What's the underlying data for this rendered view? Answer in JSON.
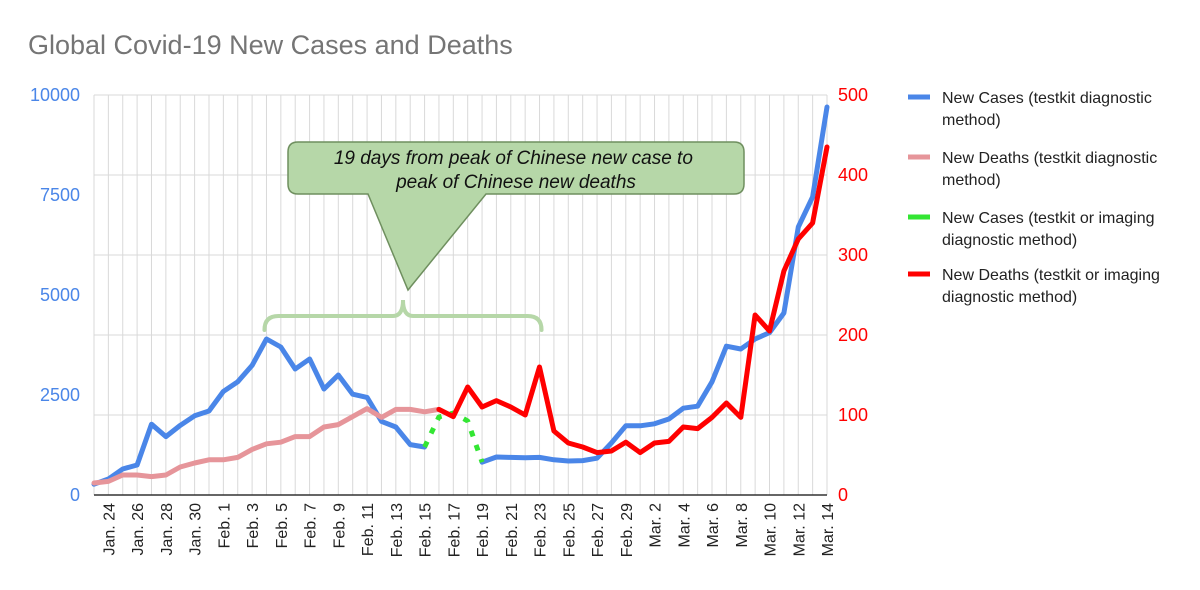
{
  "chart_data": {
    "type": "line",
    "title": "Global Covid-19 New Cases and Deaths",
    "xlabel": "",
    "ylabel_left": "",
    "ylabel_right": "",
    "grid": true,
    "legend_position": "right",
    "x": [
      "Jan. 23",
      "Jan. 24",
      "Jan. 25",
      "Jan. 26",
      "Jan. 27",
      "Jan. 28",
      "Jan. 29",
      "Jan. 30",
      "Jan. 31",
      "Feb. 1",
      "Feb. 2",
      "Feb. 3",
      "Feb. 4",
      "Feb. 5",
      "Feb. 6",
      "Feb. 7",
      "Feb. 8",
      "Feb. 9",
      "Feb. 10",
      "Feb. 11",
      "Feb. 12",
      "Feb. 13",
      "Feb. 14",
      "Feb. 15",
      "Feb. 16",
      "Feb. 17",
      "Feb. 18",
      "Feb. 19",
      "Feb. 20",
      "Feb. 21",
      "Feb. 22",
      "Feb. 23",
      "Feb. 24",
      "Feb. 25",
      "Feb. 26",
      "Feb. 27",
      "Feb. 28",
      "Feb. 29",
      "Mar. 1",
      "Mar. 2",
      "Mar. 3",
      "Mar. 4",
      "Mar. 5",
      "Mar. 6",
      "Mar. 7",
      "Mar. 8",
      "Mar. 9",
      "Mar. 10",
      "Mar. 11",
      "Mar. 12",
      "Mar. 13",
      "Mar. 14"
    ],
    "x_tick_labels": [
      "Jan. 24",
      "Jan. 26",
      "Jan. 28",
      "Jan. 30",
      "Feb. 1",
      "Feb. 3",
      "Feb. 5",
      "Feb. 7",
      "Feb. 9",
      "Feb. 11",
      "Feb. 13",
      "Feb. 15",
      "Feb. 17",
      "Feb. 19",
      "Feb. 21",
      "Feb. 23",
      "Feb. 25",
      "Feb. 27",
      "Feb. 29",
      "Mar. 2",
      "Mar. 4",
      "Mar. 6",
      "Mar. 8",
      "Mar. 10",
      "Mar. 12",
      "Mar. 14"
    ],
    "y_left": {
      "range": [
        0,
        10000
      ],
      "ticks": [
        "0",
        "2500",
        "5000",
        "7500",
        "10000"
      ],
      "color": "#4a86e8"
    },
    "y_right": {
      "range": [
        0,
        500
      ],
      "ticks": [
        "0",
        "100",
        "200",
        "300",
        "400",
        "500"
      ],
      "color": "#ff0000"
    },
    "series": [
      {
        "name": "New Cases (testkit diagnostic method)",
        "axis": "left",
        "color": "#4a86e8",
        "style": "solid",
        "values": [
          270,
          400,
          650,
          750,
          1770,
          1460,
          1740,
          1980,
          2100,
          2590,
          2830,
          3240,
          3900,
          3700,
          3150,
          3400,
          2650,
          3000,
          2520,
          2440,
          1840,
          1700,
          1260,
          1200,
          null,
          null,
          null,
          820,
          950,
          940,
          930,
          940,
          880,
          850,
          860,
          920,
          1300,
          1730,
          1730,
          1780,
          1900,
          2170,
          2220,
          2830,
          3720,
          3650,
          3900,
          4060,
          4550,
          6700,
          7450,
          9700
        ]
      },
      {
        "name": "New Deaths (testkit diagnostic method)",
        "axis": "right",
        "color": "#e6959a",
        "style": "solid",
        "values": [
          15,
          17,
          25,
          25,
          23,
          25,
          35,
          40,
          44,
          44,
          47,
          57,
          64,
          66,
          73,
          73,
          85,
          88,
          98,
          108,
          97,
          107,
          107,
          104,
          107,
          null,
          null,
          null,
          null,
          null,
          null,
          null,
          null,
          null,
          null,
          null,
          null,
          null,
          null,
          null,
          null,
          null,
          null,
          null,
          null,
          null,
          null,
          null,
          null,
          null,
          null,
          null
        ]
      },
      {
        "name": "New Cases (testkit or imaging diagnostic method)",
        "axis": "left",
        "color": "#33e633",
        "style": "dotted",
        "values": [
          null,
          null,
          null,
          null,
          null,
          null,
          null,
          null,
          null,
          null,
          null,
          null,
          null,
          null,
          null,
          null,
          null,
          null,
          null,
          null,
          null,
          null,
          null,
          1200,
          1950,
          2050,
          1850,
          820,
          null,
          null,
          null,
          null,
          null,
          null,
          null,
          null,
          null,
          null,
          null,
          null,
          null,
          null,
          null,
          null,
          null,
          null,
          null,
          null,
          null,
          null,
          null,
          null
        ]
      },
      {
        "name": "New Deaths (testkit or imaging diagnostic method)",
        "axis": "right",
        "color": "#ff0000",
        "style": "solid",
        "values": [
          null,
          null,
          null,
          null,
          null,
          null,
          null,
          null,
          null,
          null,
          null,
          null,
          null,
          null,
          null,
          null,
          null,
          null,
          null,
          null,
          null,
          null,
          null,
          null,
          107,
          98,
          135,
          110,
          118,
          110,
          100,
          160,
          80,
          65,
          60,
          53,
          55,
          66,
          53,
          65,
          67,
          85,
          83,
          97,
          115,
          97,
          225,
          205,
          280,
          320,
          340,
          435
        ]
      }
    ],
    "annotations": [
      {
        "text": "19 days from peak of Chinese new case to peak of Chinese new deaths",
        "from": "Feb. 4",
        "to": "Feb. 23"
      }
    ]
  }
}
